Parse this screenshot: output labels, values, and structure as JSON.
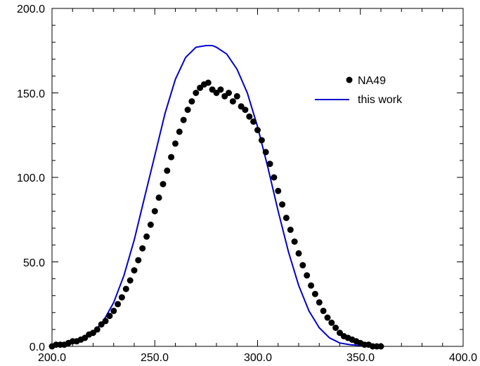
{
  "chart_data": {
    "type": "scatter",
    "title": "",
    "xlabel": "",
    "ylabel": "",
    "xlim": [
      200,
      400
    ],
    "ylim": [
      0,
      200
    ],
    "x_ticks": [
      "200.0",
      "250.0",
      "300.0",
      "350.0",
      "400.0"
    ],
    "y_ticks": [
      "0.0",
      "50.0",
      "100.0",
      "150.0",
      "200.0"
    ],
    "grid": false,
    "legend_position": "top-right",
    "series": [
      {
        "name": "NA49",
        "kind": "points",
        "color": "#000000",
        "x": [
          200,
          202,
          204,
          206,
          208,
          210,
          212,
          214,
          216,
          218,
          220,
          222,
          224,
          226,
          228,
          230,
          232,
          234,
          236,
          238,
          240,
          242,
          244,
          246,
          248,
          250,
          252,
          254,
          256,
          258,
          260,
          262,
          264,
          266,
          268,
          270,
          272,
          274,
          276,
          278,
          280,
          282,
          284,
          286,
          288,
          290,
          292,
          294,
          296,
          298,
          300,
          302,
          304,
          306,
          308,
          310,
          312,
          314,
          316,
          318,
          320,
          322,
          324,
          326,
          328,
          330,
          332,
          334,
          336,
          338,
          340,
          342,
          344,
          346,
          348,
          350,
          352,
          354,
          356,
          358,
          360
        ],
        "y": [
          0,
          1,
          1,
          1,
          2,
          3,
          3,
          4,
          5,
          7,
          8,
          10,
          13,
          15,
          18,
          21,
          25,
          29,
          34,
          39,
          45,
          51,
          58,
          65,
          72,
          80,
          88,
          96,
          104,
          112,
          120,
          127,
          134,
          140,
          145,
          150,
          153,
          155,
          156,
          152,
          150,
          152,
          148,
          150,
          145,
          148,
          142,
          140,
          136,
          133,
          128,
          122,
          115,
          108,
          100,
          92,
          84,
          76,
          69,
          62,
          55,
          48,
          42,
          36,
          31,
          26,
          21,
          17,
          14,
          11,
          8,
          6,
          5,
          4,
          3,
          2,
          1,
          1,
          0,
          0,
          0
        ]
      },
      {
        "name": "this work",
        "kind": "line",
        "color": "#0000cc",
        "x": [
          200,
          205,
          210,
          215,
          220,
          225,
          230,
          235,
          240,
          245,
          250,
          255,
          260,
          265,
          270,
          275,
          278,
          280,
          285,
          290,
          295,
          300,
          305,
          310,
          315,
          320,
          325,
          330,
          335,
          340,
          345,
          350,
          355,
          360
        ],
        "y": [
          0,
          1,
          2,
          4,
          8,
          15,
          26,
          42,
          63,
          88,
          113,
          138,
          158,
          171,
          177,
          178,
          178,
          177,
          173,
          164,
          150,
          130,
          106,
          80,
          56,
          36,
          21,
          11,
          5,
          2,
          1,
          0.5,
          0.2,
          0
        ]
      }
    ]
  }
}
